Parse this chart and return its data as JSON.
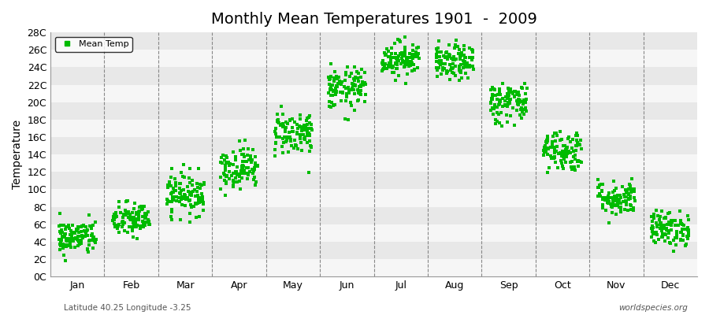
{
  "title": "Monthly Mean Temperatures 1901  -  2009",
  "ylabel": "Temperature",
  "xlabel_months": [
    "Jan",
    "Feb",
    "Mar",
    "Apr",
    "May",
    "Jun",
    "Jul",
    "Aug",
    "Sep",
    "Oct",
    "Nov",
    "Dec"
  ],
  "subtitle_left": "Latitude 40.25 Longitude -3.25",
  "subtitle_right": "worldspecies.org",
  "ytick_labels": [
    "0C",
    "2C",
    "4C",
    "6C",
    "8C",
    "10C",
    "12C",
    "14C",
    "16C",
    "18C",
    "20C",
    "22C",
    "24C",
    "26C",
    "28C"
  ],
  "ytick_values": [
    0,
    2,
    4,
    6,
    8,
    10,
    12,
    14,
    16,
    18,
    20,
    22,
    24,
    26,
    28
  ],
  "ylim": [
    0,
    28
  ],
  "marker_color": "#00BB00",
  "marker": "s",
  "marker_size": 2.5,
  "legend_label": "Mean Temp",
  "background_color": "#EEEEEE",
  "stripe_color": "#E0E0E0",
  "monthly_means": [
    4.5,
    6.5,
    9.5,
    12.5,
    16.5,
    21.5,
    25.0,
    24.5,
    20.0,
    14.5,
    9.0,
    5.5
  ],
  "monthly_stds": [
    1.0,
    1.0,
    1.2,
    1.2,
    1.3,
    1.2,
    1.0,
    1.0,
    1.2,
    1.2,
    1.0,
    1.0
  ],
  "num_years": 109,
  "title_fontsize": 14,
  "axis_fontsize": 9,
  "legend_fontsize": 8
}
